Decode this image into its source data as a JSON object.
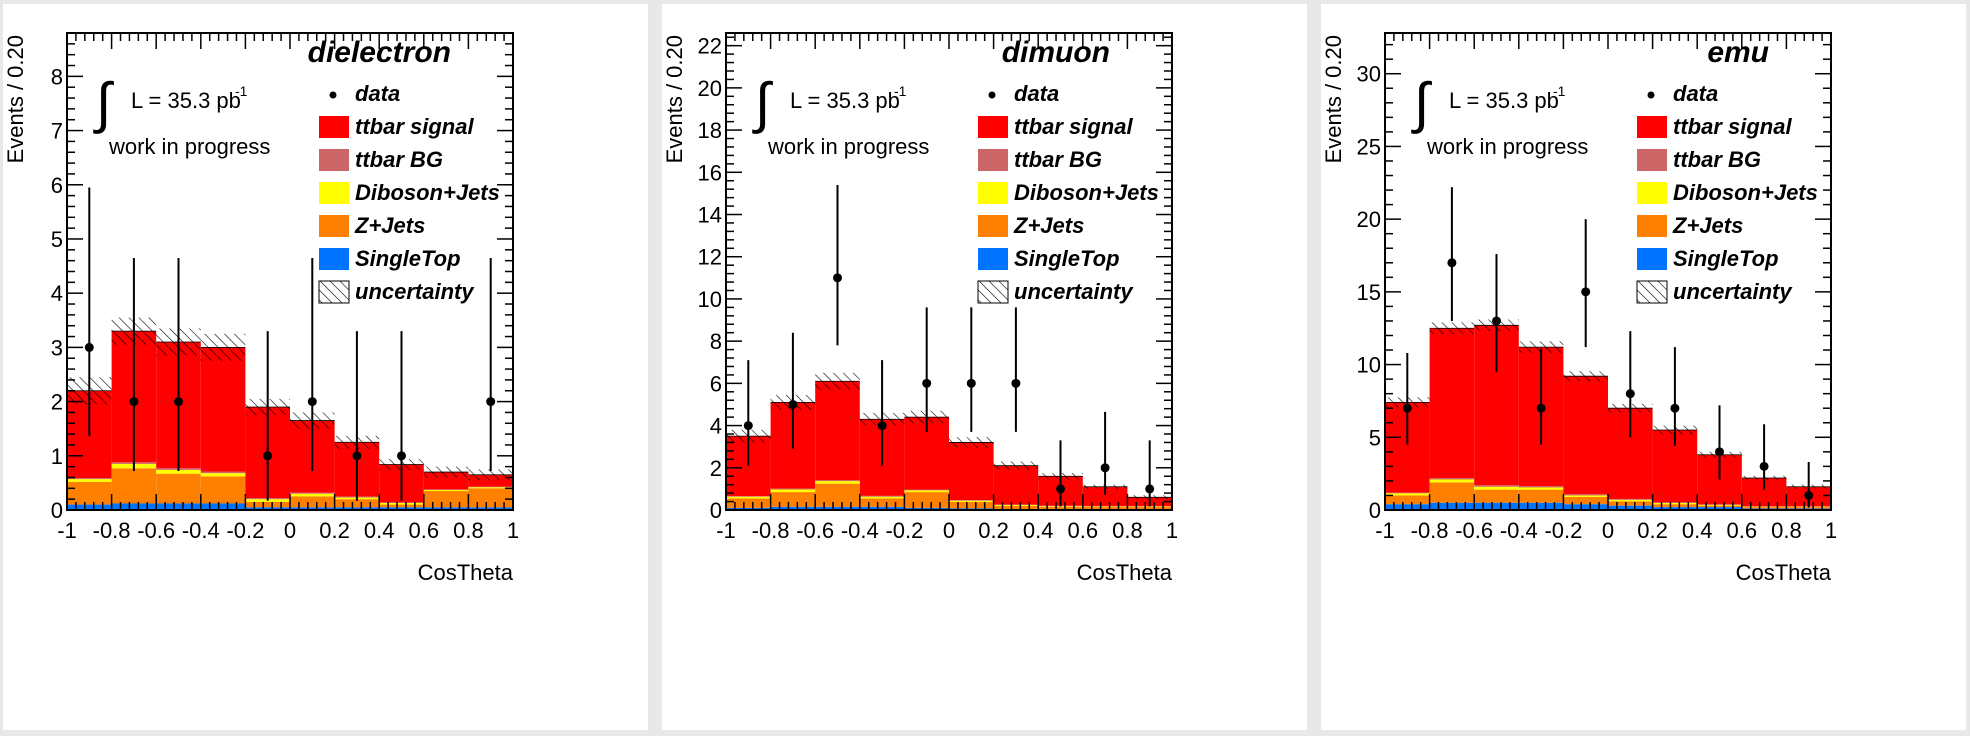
{
  "chart_data": [
    {
      "type": "bar",
      "title": "dielectron",
      "xlabel": "CosTheta",
      "ylabel": "Events / 0.20",
      "lumi_text": "L = 35.3 pb",
      "lumi_sup": "-1",
      "annotation": "work in progress",
      "xlim": [
        -1,
        1
      ],
      "ylim": [
        0,
        8.8
      ],
      "x_ticks": [
        -1,
        -0.8,
        -0.6,
        -0.4,
        -0.2,
        0,
        0.2,
        0.4,
        0.6,
        0.8,
        1
      ],
      "y_ticks": [
        0,
        1,
        2,
        3,
        4,
        5,
        6,
        7,
        8
      ],
      "bin_edges": [
        -1,
        -0.8,
        -0.6,
        -0.4,
        -0.2,
        0,
        0.2,
        0.4,
        0.6,
        0.8,
        1
      ],
      "legend": [
        "data",
        "ttbar signal",
        "ttbar BG",
        "Diboson+Jets",
        "Z+Jets",
        "SingleTop",
        "uncertainty"
      ],
      "stack": {
        "SingleTop": [
          0.1,
          0.12,
          0.12,
          0.12,
          0.05,
          0.05,
          0.05,
          0.05,
          0.05,
          0.05
        ],
        "Z+Jets": [
          0.42,
          0.65,
          0.55,
          0.5,
          0.1,
          0.2,
          0.15,
          0.05,
          0.3,
          0.35
        ],
        "Diboson+Jets": [
          0.05,
          0.08,
          0.07,
          0.06,
          0.05,
          0.05,
          0.03,
          0.03,
          0.02,
          0.02
        ],
        "ttbar BG": [
          0.02,
          0.03,
          0.03,
          0.03,
          0.02,
          0.02,
          0.02,
          0.01,
          0.01,
          0.01
        ],
        "ttbar signal": [
          1.61,
          2.42,
          2.33,
          2.29,
          1.68,
          1.33,
          1.0,
          0.7,
          0.32,
          0.22
        ]
      },
      "totals": [
        2.2,
        3.3,
        3.1,
        3.0,
        1.9,
        1.65,
        1.25,
        0.84,
        0.7,
        0.65
      ],
      "uncertainty": [
        0.25,
        0.25,
        0.25,
        0.25,
        0.15,
        0.15,
        0.12,
        0.1,
        0.1,
        0.1
      ],
      "data": [
        {
          "x": -0.9,
          "y": 3,
          "lo": 1.36,
          "hi": 5.95
        },
        {
          "x": -0.7,
          "y": 2,
          "lo": 0.72,
          "hi": 4.65
        },
        {
          "x": -0.5,
          "y": 2,
          "lo": 0.72,
          "hi": 4.65
        },
        {
          "x": -0.1,
          "y": 1,
          "lo": 0.17,
          "hi": 3.3
        },
        {
          "x": 0.1,
          "y": 2,
          "lo": 0.72,
          "hi": 4.65
        },
        {
          "x": 0.3,
          "y": 1,
          "lo": 0.17,
          "hi": 3.3
        },
        {
          "x": 0.5,
          "y": 1,
          "lo": 0.17,
          "hi": 3.3
        },
        {
          "x": 0.9,
          "y": 2,
          "lo": 0.72,
          "hi": 4.65
        }
      ]
    },
    {
      "type": "bar",
      "title": "dimuon",
      "xlabel": "CosTheta",
      "ylabel": "Events / 0.20",
      "lumi_text": "L = 35.3 pb",
      "lumi_sup": "-1",
      "annotation": "work in progress",
      "xlim": [
        -1,
        1
      ],
      "ylim": [
        0,
        22.6
      ],
      "x_ticks": [
        -1,
        -0.8,
        -0.6,
        -0.4,
        -0.2,
        0,
        0.2,
        0.4,
        0.6,
        0.8,
        1
      ],
      "y_ticks": [
        0,
        2,
        4,
        6,
        8,
        10,
        12,
        14,
        16,
        18,
        20,
        22
      ],
      "bin_edges": [
        -1,
        -0.8,
        -0.6,
        -0.4,
        -0.2,
        0,
        0.2,
        0.4,
        0.6,
        0.8,
        1
      ],
      "legend": [
        "data",
        "ttbar signal",
        "ttbar BG",
        "Diboson+Jets",
        "Z+Jets",
        "SingleTop",
        "uncertainty"
      ],
      "stack": {
        "SingleTop": [
          0.1,
          0.15,
          0.15,
          0.15,
          0.1,
          0.08,
          0.05,
          0.05,
          0.05,
          0.05
        ],
        "Z+Jets": [
          0.45,
          0.7,
          1.1,
          0.4,
          0.75,
          0.3,
          0.15,
          0.1,
          0.1,
          0.1
        ],
        "Diboson+Jets": [
          0.08,
          0.12,
          0.12,
          0.08,
          0.08,
          0.06,
          0.04,
          0.03,
          0.02,
          0.02
        ],
        "ttbar BG": [
          0.03,
          0.05,
          0.05,
          0.04,
          0.04,
          0.03,
          0.02,
          0.02,
          0.01,
          0.01
        ],
        "ttbar signal": [
          2.84,
          4.08,
          4.68,
          3.63,
          3.43,
          2.73,
          1.84,
          1.4,
          0.92,
          0.42
        ]
      },
      "totals": [
        3.5,
        5.1,
        6.1,
        4.3,
        4.4,
        3.2,
        2.1,
        1.6,
        1.1,
        0.6
      ],
      "uncertainty": [
        0.3,
        0.35,
        0.4,
        0.3,
        0.3,
        0.25,
        0.2,
        0.15,
        0.1,
        0.1
      ],
      "data": [
        {
          "x": -0.9,
          "y": 4,
          "lo": 2.1,
          "hi": 7.1
        },
        {
          "x": -0.7,
          "y": 5,
          "lo": 2.9,
          "hi": 8.4
        },
        {
          "x": -0.5,
          "y": 11,
          "lo": 7.8,
          "hi": 15.4
        },
        {
          "x": -0.3,
          "y": 4,
          "lo": 2.1,
          "hi": 7.1
        },
        {
          "x": -0.1,
          "y": 6,
          "lo": 3.7,
          "hi": 9.6
        },
        {
          "x": 0.1,
          "y": 6,
          "lo": 3.7,
          "hi": 9.6
        },
        {
          "x": 0.3,
          "y": 6,
          "lo": 3.7,
          "hi": 9.6
        },
        {
          "x": 0.5,
          "y": 1,
          "lo": 0.17,
          "hi": 3.3
        },
        {
          "x": 0.7,
          "y": 2,
          "lo": 0.72,
          "hi": 4.65
        },
        {
          "x": 0.9,
          "y": 1,
          "lo": 0.17,
          "hi": 3.3
        }
      ]
    },
    {
      "type": "bar",
      "title": "emu",
      "xlabel": "CosTheta",
      "ylabel": "Events / 0.20",
      "lumi_text": "L = 35.3 pb",
      "lumi_sup": "-1",
      "annotation": "work in progress",
      "xlim": [
        -1,
        1
      ],
      "ylim": [
        0,
        32.8
      ],
      "x_ticks": [
        -1,
        -0.8,
        -0.6,
        -0.4,
        -0.2,
        0,
        0.2,
        0.4,
        0.6,
        0.8,
        1
      ],
      "y_ticks": [
        0,
        5,
        10,
        15,
        20,
        25,
        30
      ],
      "bin_edges": [
        -1,
        -0.8,
        -0.6,
        -0.4,
        -0.2,
        0,
        0.2,
        0.4,
        0.6,
        0.8,
        1
      ],
      "legend": [
        "data",
        "ttbar signal",
        "ttbar BG",
        "Diboson+Jets",
        "Z+Jets",
        "SingleTop",
        "uncertainty"
      ],
      "stack": {
        "SingleTop": [
          0.4,
          0.5,
          0.5,
          0.5,
          0.4,
          0.3,
          0.2,
          0.2,
          0.1,
          0.1
        ],
        "Z+Jets": [
          0.6,
          1.4,
          0.9,
          0.9,
          0.5,
          0.3,
          0.2,
          0.1,
          0.1,
          0.1
        ],
        "Diboson+Jets": [
          0.15,
          0.2,
          0.2,
          0.15,
          0.1,
          0.1,
          0.08,
          0.05,
          0.03,
          0.03
        ],
        "ttbar BG": [
          0.05,
          0.1,
          0.1,
          0.1,
          0.08,
          0.06,
          0.05,
          0.04,
          0.02,
          0.02
        ],
        "ttbar signal": [
          6.2,
          10.3,
          11.0,
          9.55,
          8.12,
          6.24,
          4.97,
          3.41,
          1.95,
          1.35
        ]
      },
      "totals": [
        7.4,
        12.5,
        12.7,
        11.2,
        9.2,
        7.0,
        5.5,
        3.8,
        2.2,
        1.6
      ],
      "uncertainty": [
        0.35,
        0.4,
        0.4,
        0.4,
        0.35,
        0.3,
        0.3,
        0.2,
        0.15,
        0.15
      ],
      "data": [
        {
          "x": -0.9,
          "y": 7,
          "lo": 4.5,
          "hi": 10.8
        },
        {
          "x": -0.7,
          "y": 17,
          "lo": 13.0,
          "hi": 22.2
        },
        {
          "x": -0.5,
          "y": 13,
          "lo": 9.5,
          "hi": 17.6
        },
        {
          "x": -0.3,
          "y": 7,
          "lo": 4.5,
          "hi": 11.1
        },
        {
          "x": -0.1,
          "y": 15,
          "lo": 11.2,
          "hi": 20.0
        },
        {
          "x": 0.1,
          "y": 8,
          "lo": 5.0,
          "hi": 12.3
        },
        {
          "x": 0.3,
          "y": 7,
          "lo": 4.4,
          "hi": 11.2
        },
        {
          "x": 0.5,
          "y": 4,
          "lo": 2.1,
          "hi": 7.2
        },
        {
          "x": 0.7,
          "y": 3,
          "lo": 1.4,
          "hi": 5.9
        },
        {
          "x": 0.9,
          "y": 1,
          "lo": 0.17,
          "hi": 3.3
        }
      ]
    }
  ],
  "colors": {
    "ttbar signal": "#ff0000",
    "ttbar BG": "#cc6666",
    "Diboson+Jets": "#ffff00",
    "Z+Jets": "#ff8000",
    "SingleTop": "#0073ff"
  }
}
